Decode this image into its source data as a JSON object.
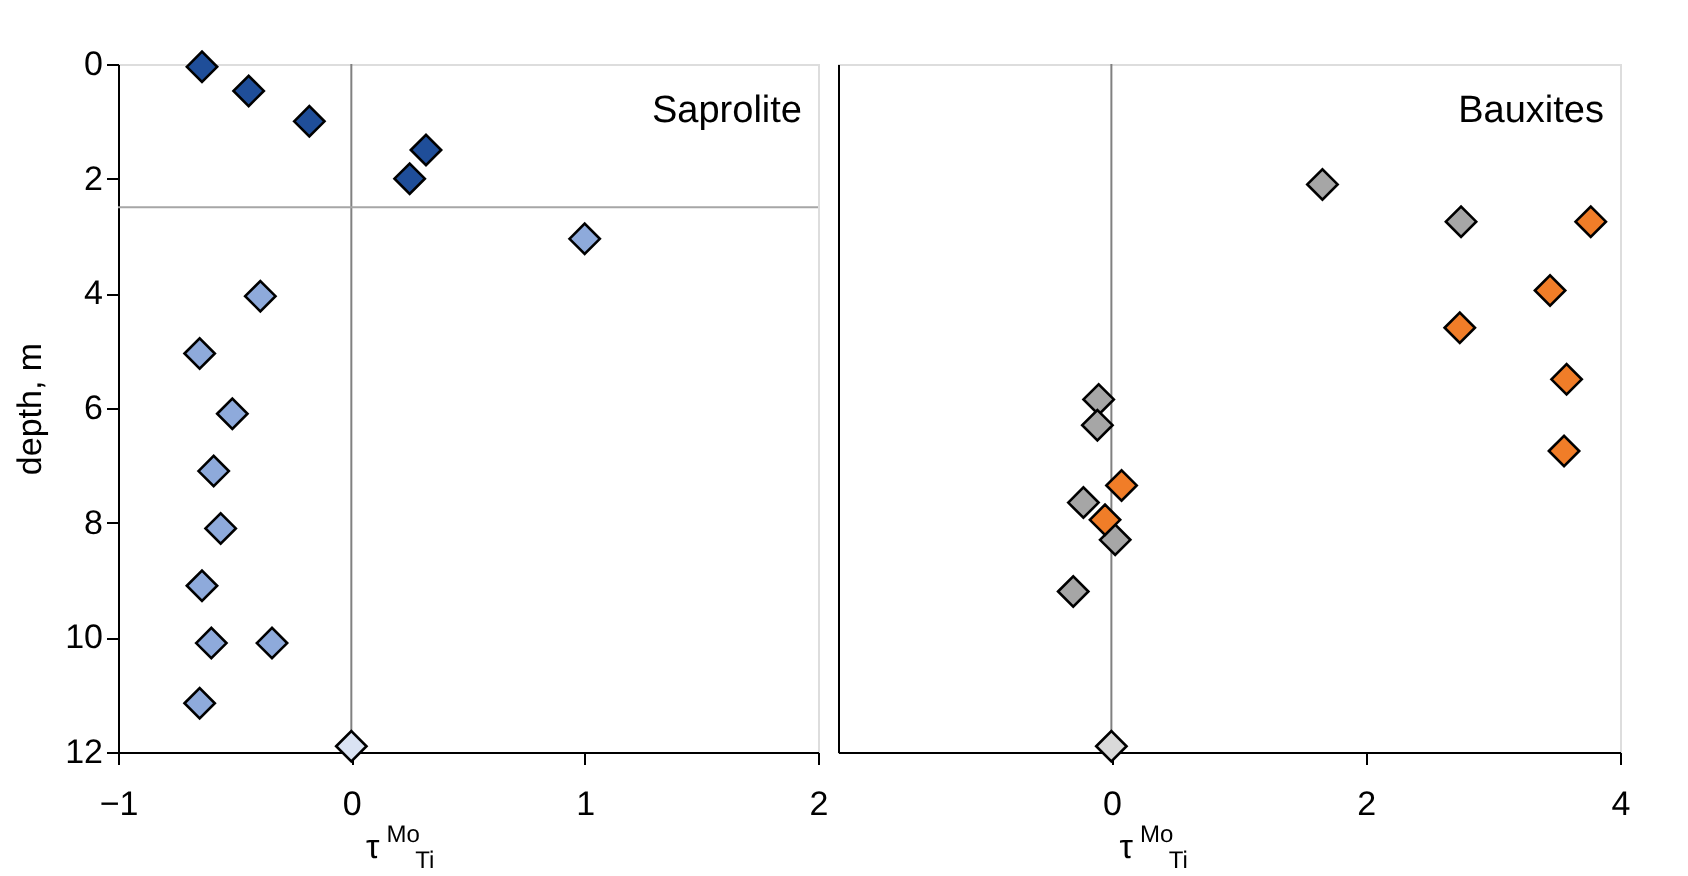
{
  "chart_data": [
    {
      "type": "scatter",
      "ylabel": "depth, m",
      "xlabel": "τ$^{Mo}$$_{Ti}$",
      "annotations": [
        "Saprolite"
      ],
      "marker": "diamond",
      "grid": false,
      "xlim": [
        -1,
        2
      ],
      "xticks": [
        -1,
        0,
        1,
        2
      ],
      "ylim": [
        12,
        0
      ],
      "yticks": [
        0,
        2,
        4,
        6,
        8,
        10,
        12
      ],
      "ref_lines": [
        {
          "axis": "x",
          "value": 0,
          "color": "#808080"
        },
        {
          "axis": "y",
          "value": 2.5,
          "color": "#a6a6a6"
        }
      ],
      "series": [
        {
          "color": "#1f4e99",
          "x": [
            -0.64,
            -0.44,
            -0.18,
            0.32,
            0.25
          ],
          "values": [
            0.05,
            0.47,
            1.0,
            1.5,
            2.0
          ]
        },
        {
          "color": "#8eaadb",
          "x": [
            1.0,
            -0.39,
            -0.65,
            -0.51,
            -0.59,
            -0.56,
            -0.64,
            -0.6,
            -0.34,
            -0.65
          ],
          "values": [
            3.05,
            4.05,
            5.05,
            6.1,
            7.1,
            8.1,
            9.1,
            10.1,
            10.1,
            11.15
          ]
        },
        {
          "color": "#dae3f3",
          "x": [
            0
          ],
          "values": [
            11.9
          ]
        }
      ]
    },
    {
      "type": "scatter",
      "xlabel": "τ$^{Mo}$$_{Ti}$",
      "annotations": [
        "Bauxites"
      ],
      "marker": "diamond",
      "grid": false,
      "tick_labels": "x",
      "xlim": [
        -2.15,
        4
      ],
      "xticks": [
        0,
        2,
        4
      ],
      "ylim": [
        12,
        0
      ],
      "ref_lines": [
        {
          "axis": "x",
          "value": 0,
          "color": "#808080"
        }
      ],
      "series": [
        {
          "color": "#a6a6a6",
          "x": [
            1.66,
            2.75,
            -0.1,
            -0.11,
            -0.22,
            0.03,
            -0.3
          ],
          "values": [
            2.1,
            2.75,
            5.85,
            6.3,
            7.65,
            8.3,
            9.2
          ]
        },
        {
          "color": "#f07d28",
          "x": [
            3.77,
            3.45,
            2.74,
            3.58,
            3.56,
            0.08,
            -0.05
          ],
          "values": [
            2.75,
            3.95,
            4.6,
            5.5,
            6.75,
            7.35,
            7.95
          ]
        },
        {
          "color": "#d9d9d9",
          "x": [
            0
          ],
          "values": [
            11.9
          ]
        }
      ]
    }
  ]
}
